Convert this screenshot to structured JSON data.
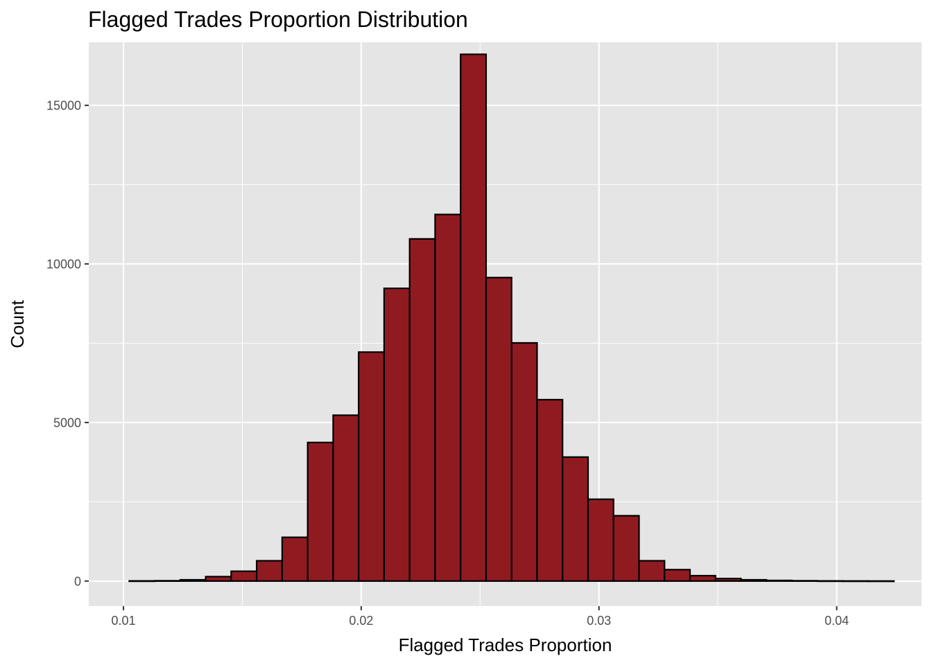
{
  "chart_data": {
    "type": "bar",
    "title": "Flagged Trades Proportion Distribution",
    "xlabel": "Flagged Trades Proportion",
    "ylabel": "Count",
    "xlim": [
      0.00854,
      0.04357
    ],
    "ylim": [
      -790,
      16990
    ],
    "xticks": [
      0.01,
      0.02,
      0.03,
      0.04
    ],
    "xtick_labels": [
      "0.01",
      "0.02",
      "0.03",
      "0.04"
    ],
    "yticks": [
      0,
      5000,
      10000,
      15000
    ],
    "ytick_labels": [
      "0",
      "5000",
      "10000",
      "15000"
    ],
    "grid": true,
    "bin_width": 0.001072,
    "bin_centers": [
      0.010778,
      0.01185,
      0.012922,
      0.013994,
      0.015066,
      0.016138,
      0.017211,
      0.018283,
      0.019355,
      0.020427,
      0.021499,
      0.022572,
      0.023644,
      0.024716,
      0.025788,
      0.02686,
      0.027932,
      0.029005,
      0.030077,
      0.031149,
      0.032221,
      0.033293,
      0.034366,
      0.035438,
      0.03651,
      0.037582,
      0.038654,
      0.039726,
      0.040799,
      0.041871
    ],
    "values": [
      5,
      10,
      40,
      140,
      310,
      640,
      1380,
      4370,
      5230,
      7220,
      9230,
      10790,
      11560,
      16610,
      9570,
      7510,
      5720,
      3910,
      2580,
      2060,
      640,
      360,
      170,
      80,
      40,
      20,
      10,
      5,
      3,
      2
    ],
    "colors": {
      "bar_fill": "#8f1b21",
      "bar_outline": "#000000",
      "panel": "#e5e5e5",
      "grid": "#ffffff"
    }
  }
}
